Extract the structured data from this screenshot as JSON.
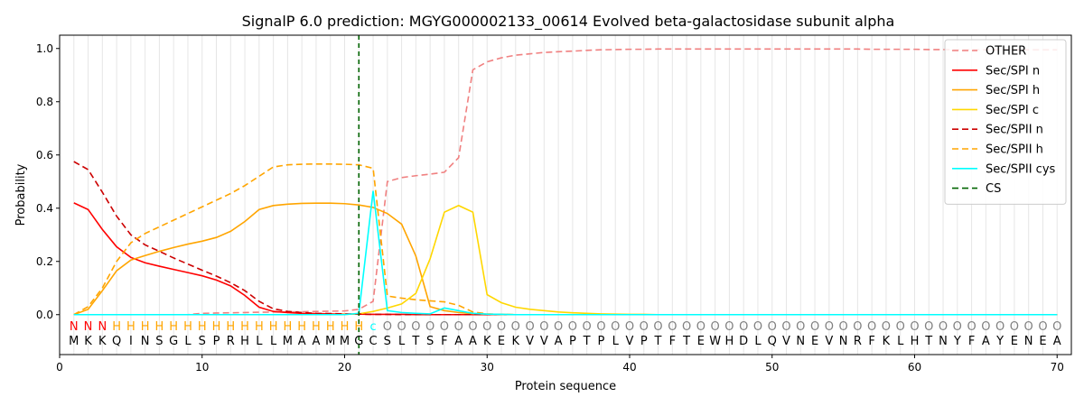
{
  "chart_data": {
    "type": "line",
    "title": "SignalP 6.0 prediction: MGYG000002133_00614 Evolved beta-galactosidase subunit alpha",
    "xlabel": "Protein sequence",
    "ylabel": "Probability",
    "xlim": [
      0,
      71
    ],
    "ylim": [
      -0.15,
      1.05
    ],
    "xticks": [
      0,
      10,
      20,
      30,
      40,
      50,
      60,
      70
    ],
    "yticks": [
      0.0,
      0.2,
      0.4,
      0.6,
      0.8,
      1.0
    ],
    "grid": "vertical lines at every residue",
    "legend_position": "top-right",
    "sequence": "MKKQINSGLSPRHLLMAAMMGCSLTSFAAKEKVVAPTPLVPTFTEWHDLQVNEVNRFKLHTNYFAYENEA",
    "region_labels": "NNNHHHHHHHHHHHHHHHHHHCOOOOOOOOOOOOOOOOOOOOOOOOOOOOOOOOOOOOOOOOOOOOOOOO",
    "region_colors": {
      "N": "#ff0000",
      "H": "#ffa500",
      "C": "#00ffff",
      "O": "#808080"
    },
    "cleavage_site": 21,
    "series": [
      {
        "name": "OTHER",
        "color": "#f08080",
        "dash": "dashed",
        "values": [
          0,
          0,
          0,
          0,
          0,
          0,
          0,
          0,
          0,
          0.005,
          0.006,
          0.007,
          0.008,
          0.009,
          0.01,
          0.01,
          0.011,
          0.012,
          0.013,
          0.014,
          0.02,
          0.05,
          0.5,
          0.515,
          0.522,
          0.528,
          0.535,
          0.59,
          0.92,
          0.95,
          0.965,
          0.975,
          0.98,
          0.985,
          0.988,
          0.99,
          0.993,
          0.995,
          0.996,
          0.997,
          0.997,
          0.998,
          0.998,
          0.998,
          0.998,
          0.998,
          0.998,
          0.998,
          0.998,
          0.998,
          0.998,
          0.998,
          0.998,
          0.998,
          0.998,
          0.998,
          0.997,
          0.997,
          0.997,
          0.997,
          0.996,
          0.996,
          0.995,
          0.995,
          0.995,
          0.995,
          0.995,
          0.995,
          0.995,
          0.995
        ]
      },
      {
        "name": "Sec/SPI n",
        "color": "#ff0000",
        "dash": "solid",
        "values": [
          0.42,
          0.395,
          0.32,
          0.255,
          0.215,
          0.195,
          0.182,
          0.17,
          0.158,
          0.146,
          0.13,
          0.108,
          0.072,
          0.028,
          0.012,
          0.008,
          0.005,
          0.004,
          0.003,
          0.002,
          0.002,
          0.001,
          0.001,
          0.001,
          0,
          0,
          0,
          0,
          0,
          0,
          0,
          0,
          0,
          0,
          0,
          0,
          0,
          0,
          0,
          0,
          0,
          0,
          0,
          0,
          0,
          0,
          0,
          0,
          0,
          0,
          0,
          0,
          0,
          0,
          0,
          0,
          0,
          0,
          0,
          0,
          0,
          0,
          0,
          0,
          0,
          0,
          0,
          0,
          0,
          0
        ]
      },
      {
        "name": "Sec/SPI h",
        "color": "#ffa500",
        "dash": "solid",
        "values": [
          0,
          0.02,
          0.09,
          0.165,
          0.205,
          0.222,
          0.238,
          0.252,
          0.265,
          0.276,
          0.29,
          0.313,
          0.35,
          0.395,
          0.41,
          0.415,
          0.418,
          0.419,
          0.419,
          0.417,
          0.412,
          0.403,
          0.38,
          0.34,
          0.22,
          0.03,
          0.015,
          0.008,
          0.004,
          0.002,
          0.001,
          0,
          0,
          0,
          0,
          0,
          0,
          0,
          0,
          0,
          0,
          0,
          0,
          0,
          0,
          0,
          0,
          0,
          0,
          0,
          0,
          0,
          0,
          0,
          0,
          0,
          0,
          0,
          0,
          0,
          0,
          0,
          0,
          0,
          0,
          0,
          0,
          0,
          0,
          0
        ]
      },
      {
        "name": "Sec/SPI c",
        "color": "#ffd700",
        "dash": "solid",
        "values": [
          0,
          0,
          0,
          0,
          0,
          0,
          0,
          0,
          0,
          0,
          0,
          0,
          0,
          0,
          0,
          0,
          0,
          0,
          0,
          0.001,
          0.003,
          0.012,
          0.025,
          0.04,
          0.08,
          0.21,
          0.385,
          0.41,
          0.385,
          0.075,
          0.045,
          0.028,
          0.02,
          0.015,
          0.01,
          0.007,
          0.005,
          0.003,
          0.002,
          0.001,
          0.001,
          0,
          0,
          0,
          0,
          0,
          0,
          0,
          0,
          0,
          0,
          0,
          0,
          0,
          0,
          0,
          0,
          0,
          0,
          0,
          0,
          0,
          0,
          0,
          0,
          0,
          0,
          0,
          0,
          0
        ]
      },
      {
        "name": "Sec/SPII n",
        "color": "#cc0000",
        "dash": "dashed",
        "values": [
          0.575,
          0.545,
          0.46,
          0.37,
          0.3,
          0.262,
          0.238,
          0.213,
          0.19,
          0.167,
          0.145,
          0.12,
          0.09,
          0.05,
          0.022,
          0.012,
          0.008,
          0.005,
          0.004,
          0.003,
          0.002,
          0.001,
          0.001,
          0,
          0,
          0,
          0,
          0,
          0,
          0,
          0,
          0,
          0,
          0,
          0,
          0,
          0,
          0,
          0,
          0,
          0,
          0,
          0,
          0,
          0,
          0,
          0,
          0,
          0,
          0,
          0,
          0,
          0,
          0,
          0,
          0,
          0,
          0,
          0,
          0,
          0,
          0,
          0,
          0,
          0,
          0,
          0,
          0,
          0,
          0
        ]
      },
      {
        "name": "Sec/SPII h",
        "color": "#ffa500",
        "dash": "dashed",
        "values": [
          0,
          0.03,
          0.1,
          0.2,
          0.27,
          0.305,
          0.33,
          0.355,
          0.38,
          0.405,
          0.43,
          0.455,
          0.485,
          0.52,
          0.555,
          0.563,
          0.565,
          0.566,
          0.566,
          0.565,
          0.563,
          0.55,
          0.07,
          0.062,
          0.056,
          0.052,
          0.048,
          0.035,
          0.01,
          0.003,
          0.001,
          0,
          0,
          0,
          0,
          0,
          0,
          0,
          0,
          0,
          0,
          0,
          0,
          0,
          0,
          0,
          0,
          0,
          0,
          0,
          0,
          0,
          0,
          0,
          0,
          0,
          0,
          0,
          0,
          0,
          0,
          0,
          0,
          0,
          0,
          0,
          0,
          0,
          0,
          0
        ]
      },
      {
        "name": "Sec/SPII cys",
        "color": "#00ffff",
        "dash": "solid",
        "values": [
          0,
          0,
          0,
          0,
          0,
          0,
          0,
          0,
          0,
          0,
          0,
          0,
          0,
          0,
          0,
          0,
          0,
          0,
          0,
          0,
          0.005,
          0.465,
          0.015,
          0.008,
          0.005,
          0.003,
          0.025,
          0.015,
          0.005,
          0.002,
          0.001,
          0,
          0,
          0,
          0,
          0,
          0,
          0,
          0,
          0,
          0,
          0,
          0,
          0,
          0,
          0,
          0,
          0,
          0,
          0,
          0,
          0,
          0,
          0,
          0,
          0,
          0,
          0,
          0,
          0,
          0,
          0,
          0,
          0,
          0,
          0,
          0,
          0,
          0,
          0
        ]
      }
    ],
    "cs_legend": {
      "name": "CS",
      "color": "#006400",
      "dash": "dashed"
    }
  }
}
